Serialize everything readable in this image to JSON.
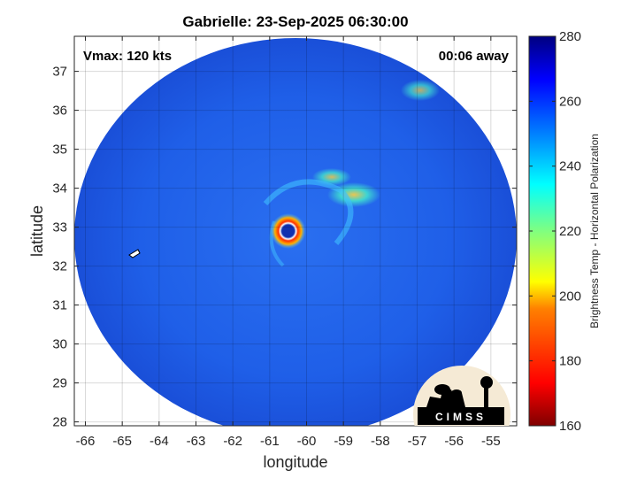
{
  "title": "Gabrielle: 23-Sep-2025 06:30:00",
  "vmax_text": "Vmax: 120 kts",
  "away_text": "00:06 away",
  "xlabel": "longitude",
  "ylabel": "latitude",
  "colorbar_label": "Brightness Temp - Horizontal Polarization",
  "logo_text": "CIMSS",
  "map_data": {
    "storm_name": "Gabrielle",
    "lon_range": [
      -66.3,
      -54.3
    ],
    "lat_range": [
      27.9,
      37.9
    ],
    "x_ticks": [
      -66,
      -65,
      -64,
      -63,
      -62,
      -61,
      -60,
      -59,
      -58,
      -57,
      -56,
      -55
    ],
    "y_ticks": [
      28,
      29,
      30,
      31,
      32,
      33,
      34,
      35,
      36,
      37
    ],
    "grid": true,
    "eye_center": {
      "lon": -60.5,
      "lat": 32.9
    },
    "colorbar": {
      "min": 160,
      "max": 280,
      "ticks": [
        160,
        180,
        200,
        220,
        240,
        260,
        280
      ],
      "colormap": "jet",
      "colors": [
        "#7f0000",
        "#ff0000",
        "#ff8000",
        "#ffff00",
        "#80ff80",
        "#00ffff",
        "#0080ff",
        "#0000ff",
        "#00007f"
      ]
    }
  }
}
